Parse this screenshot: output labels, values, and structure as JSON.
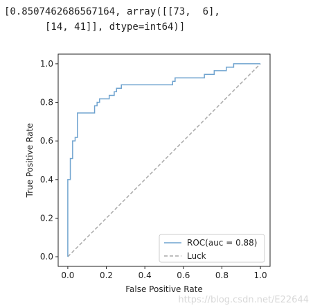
{
  "console_output": {
    "line1": "[0.8507462686567164, array([[73,  6],",
    "line2": "       [14, 41]], dtype=int64)]"
  },
  "watermark": "https://blog.csdn.net/E22644",
  "chart_data": {
    "type": "line",
    "xlabel": "False Positive Rate",
    "ylabel": "True Positive Rate",
    "xlim": [
      -0.05,
      1.05
    ],
    "ylim": [
      -0.05,
      1.05
    ],
    "xticks": [
      0.0,
      0.2,
      0.4,
      0.6,
      0.8,
      1.0
    ],
    "yticks": [
      0.0,
      0.2,
      0.4,
      0.6,
      0.8,
      1.0
    ],
    "xtick_labels": [
      "0.0",
      "0.2",
      "0.4",
      "0.6",
      "0.8",
      "1.0"
    ],
    "ytick_labels": [
      "0.0",
      "0.2",
      "0.4",
      "0.6",
      "0.8",
      "1.0"
    ],
    "grid": false,
    "legend_placement": "lower right",
    "series": [
      {
        "name": "ROC(auc = 0.88)",
        "color": "#6fa3cf",
        "style": "solid",
        "x": [
          0.0,
          0.0,
          0.013,
          0.013,
          0.025,
          0.025,
          0.038,
          0.038,
          0.05,
          0.05,
          0.063,
          0.063,
          0.076,
          0.076,
          0.139,
          0.139,
          0.152,
          0.152,
          0.165,
          0.165,
          0.19,
          0.19,
          0.215,
          0.215,
          0.241,
          0.241,
          0.253,
          0.253,
          0.278,
          0.278,
          0.544,
          0.544,
          0.557,
          0.557,
          0.709,
          0.709,
          0.76,
          0.76,
          0.823,
          0.823,
          0.861,
          0.861,
          1.0
        ],
        "y": [
          0.0,
          0.4,
          0.4,
          0.509,
          0.509,
          0.6,
          0.6,
          0.618,
          0.618,
          0.745,
          0.745,
          0.745,
          0.745,
          0.745,
          0.745,
          0.782,
          0.782,
          0.8,
          0.8,
          0.818,
          0.818,
          0.818,
          0.818,
          0.836,
          0.836,
          0.855,
          0.855,
          0.873,
          0.873,
          0.891,
          0.891,
          0.909,
          0.909,
          0.927,
          0.927,
          0.945,
          0.945,
          0.964,
          0.964,
          0.982,
          0.982,
          1.0,
          1.0
        ]
      },
      {
        "name": "Luck",
        "color": "#a9a9a9",
        "style": "dashed",
        "x": [
          0.0,
          1.0
        ],
        "y": [
          0.0,
          1.0
        ]
      }
    ]
  }
}
